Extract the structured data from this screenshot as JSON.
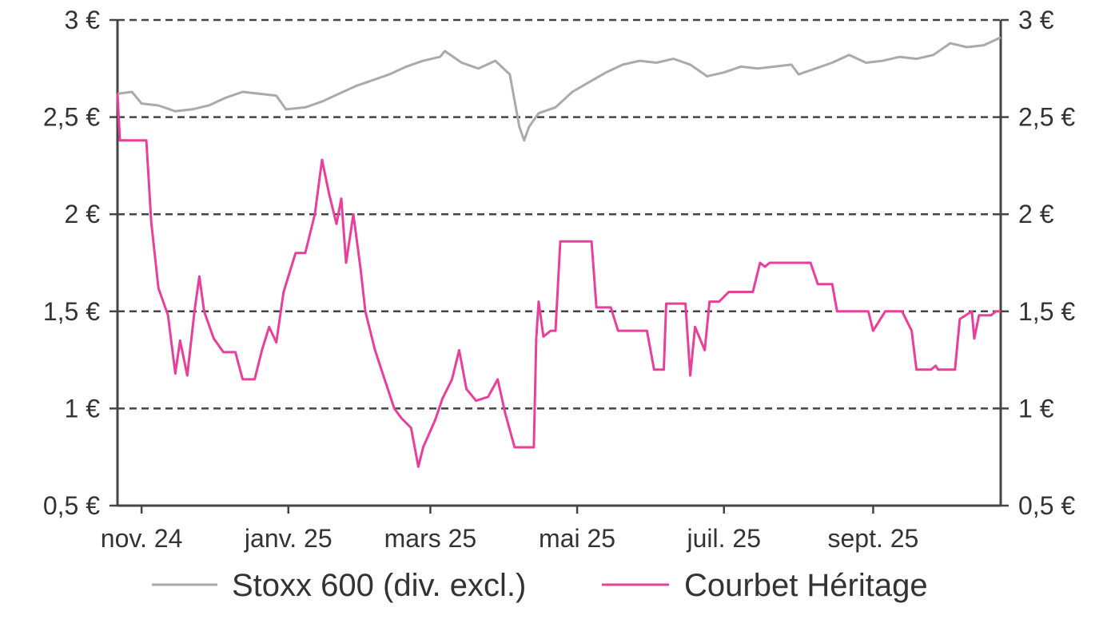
{
  "chart_data": {
    "type": "line",
    "title": "",
    "xlabel": "",
    "ylabel": "",
    "ylim": [
      0.5,
      3
    ],
    "y_ticks": [
      {
        "value": 3.0,
        "label": "3 €"
      },
      {
        "value": 2.5,
        "label": "2,5 €"
      },
      {
        "value": 2.0,
        "label": "2 €"
      },
      {
        "value": 1.5,
        "label": "1,5 €"
      },
      {
        "value": 1.0,
        "label": "1 €"
      },
      {
        "value": 0.5,
        "label": "0,5 €"
      }
    ],
    "x_ticks": [
      "nov. 24",
      "janv. 25",
      "mars 25",
      "mai 25",
      "juil. 25",
      "sept. 25"
    ],
    "x_tick_dates": [
      "2024-11-01",
      "2025-01-01",
      "2025-03-01",
      "2025-05-01",
      "2025-07-01",
      "2025-09-01"
    ],
    "xlim": [
      "2024-10-22",
      "2025-10-24"
    ],
    "grid": "horizontal dashed",
    "legend_position": "bottom",
    "series": [
      {
        "name": "Stoxx 600 (div. excl.)",
        "color": "#aaaaaa",
        "points": [
          [
            "2024-10-22",
            2.62
          ],
          [
            "2024-10-28",
            2.63
          ],
          [
            "2024-11-01",
            2.57
          ],
          [
            "2024-11-08",
            2.56
          ],
          [
            "2024-11-15",
            2.53
          ],
          [
            "2024-11-22",
            2.54
          ],
          [
            "2024-11-29",
            2.56
          ],
          [
            "2024-12-06",
            2.6
          ],
          [
            "2024-12-13",
            2.63
          ],
          [
            "2024-12-20",
            2.62
          ],
          [
            "2024-12-27",
            2.61
          ],
          [
            "2024-12-31",
            2.54
          ],
          [
            "2025-01-08",
            2.55
          ],
          [
            "2025-01-15",
            2.58
          ],
          [
            "2025-01-22",
            2.62
          ],
          [
            "2025-01-29",
            2.66
          ],
          [
            "2025-02-05",
            2.69
          ],
          [
            "2025-02-12",
            2.72
          ],
          [
            "2025-02-19",
            2.76
          ],
          [
            "2025-02-26",
            2.79
          ],
          [
            "2025-03-05",
            2.81
          ],
          [
            "2025-03-07",
            2.84
          ],
          [
            "2025-03-14",
            2.78
          ],
          [
            "2025-03-21",
            2.75
          ],
          [
            "2025-03-28",
            2.79
          ],
          [
            "2025-04-03",
            2.72
          ],
          [
            "2025-04-07",
            2.45
          ],
          [
            "2025-04-09",
            2.38
          ],
          [
            "2025-04-11",
            2.45
          ],
          [
            "2025-04-15",
            2.52
          ],
          [
            "2025-04-22",
            2.55
          ],
          [
            "2025-04-29",
            2.63
          ],
          [
            "2025-05-06",
            2.68
          ],
          [
            "2025-05-13",
            2.73
          ],
          [
            "2025-05-20",
            2.77
          ],
          [
            "2025-05-27",
            2.79
          ],
          [
            "2025-06-03",
            2.78
          ],
          [
            "2025-06-10",
            2.8
          ],
          [
            "2025-06-17",
            2.77
          ],
          [
            "2025-06-24",
            2.71
          ],
          [
            "2025-07-01",
            2.73
          ],
          [
            "2025-07-08",
            2.76
          ],
          [
            "2025-07-15",
            2.75
          ],
          [
            "2025-07-22",
            2.76
          ],
          [
            "2025-07-29",
            2.77
          ],
          [
            "2025-08-01",
            2.72
          ],
          [
            "2025-08-08",
            2.75
          ],
          [
            "2025-08-15",
            2.78
          ],
          [
            "2025-08-22",
            2.82
          ],
          [
            "2025-08-29",
            2.78
          ],
          [
            "2025-09-05",
            2.79
          ],
          [
            "2025-09-12",
            2.81
          ],
          [
            "2025-09-19",
            2.8
          ],
          [
            "2025-09-26",
            2.82
          ],
          [
            "2025-10-03",
            2.88
          ],
          [
            "2025-10-10",
            2.86
          ],
          [
            "2025-10-17",
            2.87
          ],
          [
            "2025-10-24",
            2.91
          ]
        ]
      },
      {
        "name": "Courbet Héritage",
        "color": "#e8409a",
        "points": [
          [
            "2024-10-22",
            2.62
          ],
          [
            "2024-10-23",
            2.38
          ],
          [
            "2024-10-28",
            2.38
          ],
          [
            "2024-11-03",
            2.38
          ],
          [
            "2024-11-05",
            1.96
          ],
          [
            "2024-11-08",
            1.62
          ],
          [
            "2024-11-12",
            1.48
          ],
          [
            "2024-11-15",
            1.18
          ],
          [
            "2024-11-17",
            1.35
          ],
          [
            "2024-11-20",
            1.17
          ],
          [
            "2024-11-23",
            1.5
          ],
          [
            "2024-11-25",
            1.68
          ],
          [
            "2024-11-27",
            1.5
          ],
          [
            "2024-12-01",
            1.36
          ],
          [
            "2024-12-05",
            1.29
          ],
          [
            "2024-12-10",
            1.29
          ],
          [
            "2024-12-13",
            1.15
          ],
          [
            "2024-12-18",
            1.15
          ],
          [
            "2024-12-21",
            1.3
          ],
          [
            "2024-12-24",
            1.42
          ],
          [
            "2024-12-27",
            1.34
          ],
          [
            "2024-12-30",
            1.6
          ],
          [
            "2025-01-04",
            1.8
          ],
          [
            "2025-01-08",
            1.8
          ],
          [
            "2025-01-12",
            2.0
          ],
          [
            "2025-01-15",
            2.28
          ],
          [
            "2025-01-18",
            2.1
          ],
          [
            "2025-01-21",
            1.95
          ],
          [
            "2025-01-23",
            2.08
          ],
          [
            "2025-01-25",
            1.75
          ],
          [
            "2025-01-28",
            2.0
          ],
          [
            "2025-01-31",
            1.72
          ],
          [
            "2025-02-02",
            1.5
          ],
          [
            "2025-02-06",
            1.3
          ],
          [
            "2025-02-10",
            1.15
          ],
          [
            "2025-02-14",
            1.0
          ],
          [
            "2025-02-17",
            0.95
          ],
          [
            "2025-02-21",
            0.9
          ],
          [
            "2025-02-24",
            0.7
          ],
          [
            "2025-02-26",
            0.8
          ],
          [
            "2025-03-03",
            0.94
          ],
          [
            "2025-03-06",
            1.05
          ],
          [
            "2025-03-10",
            1.15
          ],
          [
            "2025-03-13",
            1.3
          ],
          [
            "2025-03-16",
            1.1
          ],
          [
            "2025-03-20",
            1.04
          ],
          [
            "2025-03-25",
            1.06
          ],
          [
            "2025-03-29",
            1.15
          ],
          [
            "2025-04-01",
            0.98
          ],
          [
            "2025-04-05",
            0.8
          ],
          [
            "2025-04-10",
            0.8
          ],
          [
            "2025-04-13",
            0.8
          ],
          [
            "2025-04-14",
            1.36
          ],
          [
            "2025-04-15",
            1.55
          ],
          [
            "2025-04-17",
            1.37
          ],
          [
            "2025-04-20",
            1.4
          ],
          [
            "2025-04-22",
            1.4
          ],
          [
            "2025-04-24",
            1.86
          ],
          [
            "2025-05-07",
            1.86
          ],
          [
            "2025-05-09",
            1.52
          ],
          [
            "2025-05-15",
            1.52
          ],
          [
            "2025-05-18",
            1.4
          ],
          [
            "2025-05-30",
            1.4
          ],
          [
            "2025-06-02",
            1.2
          ],
          [
            "2025-06-06",
            1.2
          ],
          [
            "2025-06-07",
            1.54
          ],
          [
            "2025-06-15",
            1.54
          ],
          [
            "2025-06-17",
            1.17
          ],
          [
            "2025-06-19",
            1.42
          ],
          [
            "2025-06-23",
            1.3
          ],
          [
            "2025-06-25",
            1.55
          ],
          [
            "2025-06-29",
            1.55
          ],
          [
            "2025-07-03",
            1.6
          ],
          [
            "2025-07-13",
            1.6
          ],
          [
            "2025-07-16",
            1.75
          ],
          [
            "2025-07-18",
            1.73
          ],
          [
            "2025-07-20",
            1.75
          ],
          [
            "2025-08-06",
            1.75
          ],
          [
            "2025-08-09",
            1.64
          ],
          [
            "2025-08-15",
            1.64
          ],
          [
            "2025-08-17",
            1.5
          ],
          [
            "2025-08-30",
            1.5
          ],
          [
            "2025-09-01",
            1.4
          ],
          [
            "2025-09-06",
            1.5
          ],
          [
            "2025-09-13",
            1.5
          ],
          [
            "2025-09-17",
            1.4
          ],
          [
            "2025-09-19",
            1.2
          ],
          [
            "2025-09-25",
            1.2
          ],
          [
            "2025-09-27",
            1.22
          ],
          [
            "2025-09-28",
            1.2
          ],
          [
            "2025-10-05",
            1.2
          ],
          [
            "2025-10-07",
            1.46
          ],
          [
            "2025-10-12",
            1.5
          ],
          [
            "2025-10-13",
            1.36
          ],
          [
            "2025-10-15",
            1.48
          ],
          [
            "2025-10-20",
            1.48
          ],
          [
            "2025-10-22",
            1.5
          ],
          [
            "2025-10-24",
            1.5
          ]
        ]
      }
    ]
  }
}
